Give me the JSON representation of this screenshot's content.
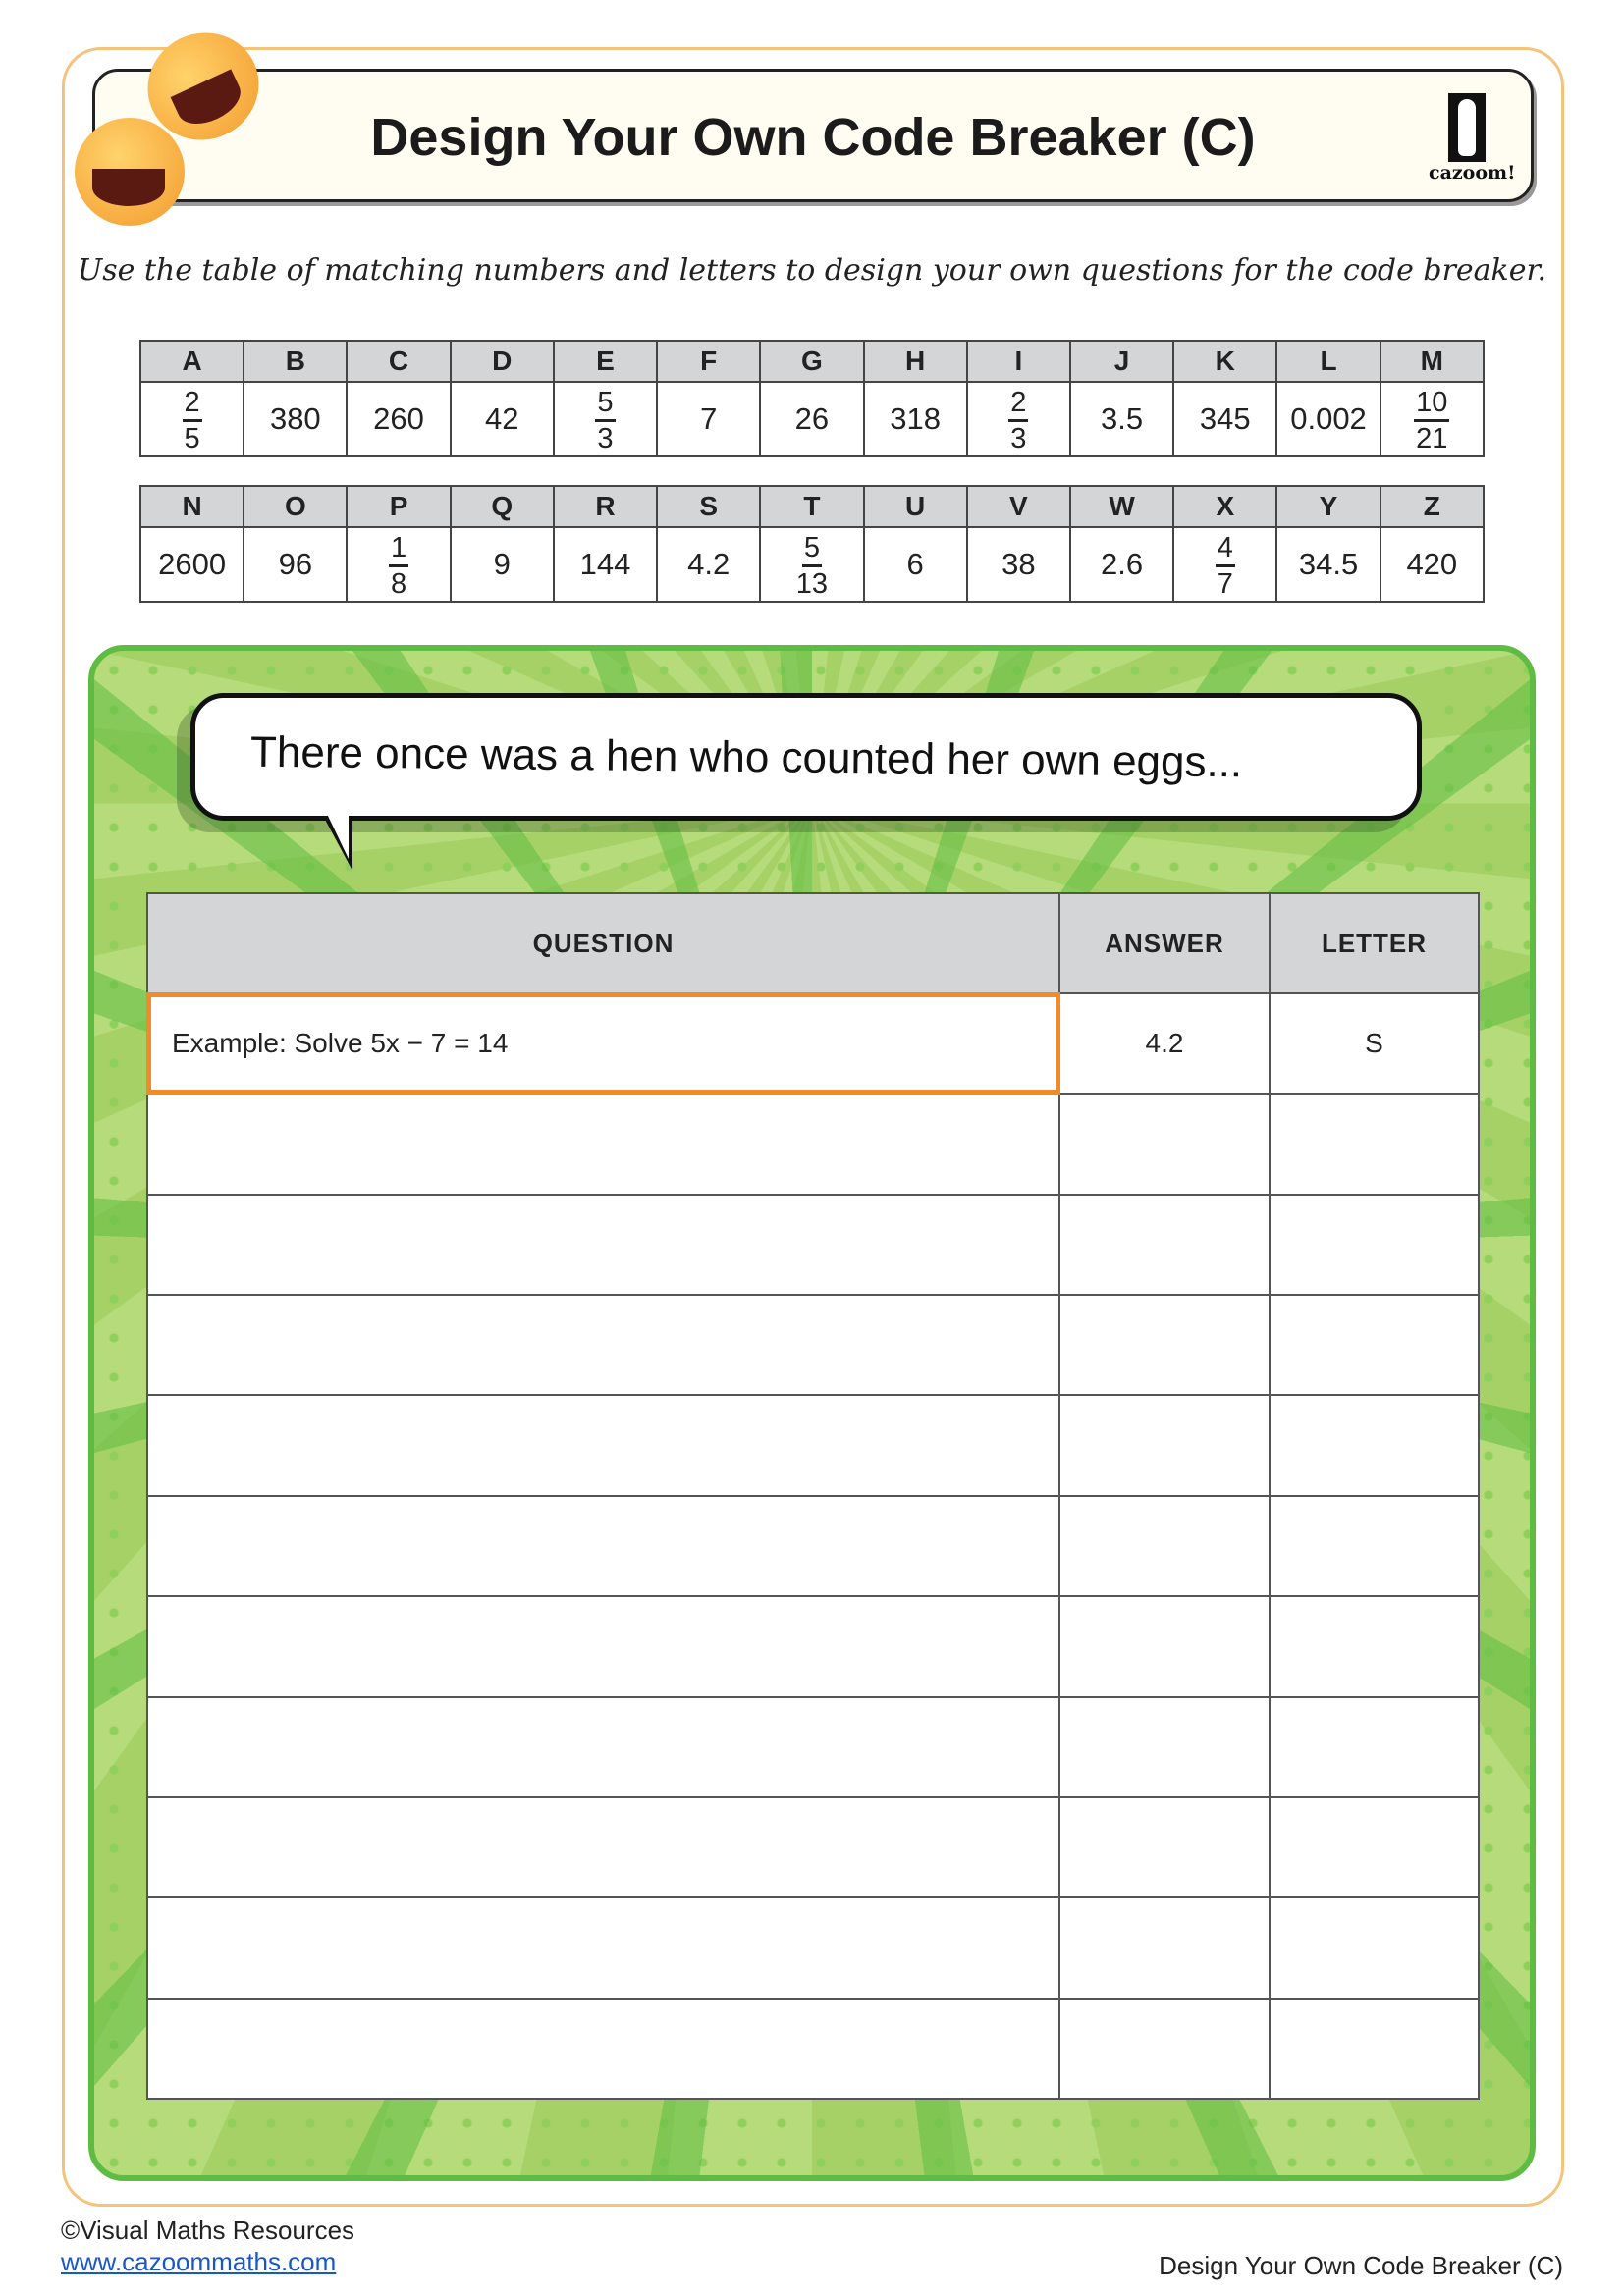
{
  "header": {
    "title": "Design Your Own Code Breaker (C)",
    "logo_text": "cazoom!"
  },
  "instructions": "Use the table of matching numbers and letters to design your own questions for the code breaker.",
  "code_table": [
    [
      {
        "letter": "A",
        "frac": [
          "2",
          "5"
        ]
      },
      {
        "letter": "B",
        "value": "380"
      },
      {
        "letter": "C",
        "value": "260"
      },
      {
        "letter": "D",
        "value": "42"
      },
      {
        "letter": "E",
        "frac": [
          "5",
          "3"
        ]
      },
      {
        "letter": "F",
        "value": "7"
      },
      {
        "letter": "G",
        "value": "26"
      },
      {
        "letter": "H",
        "value": "318"
      },
      {
        "letter": "I",
        "frac": [
          "2",
          "3"
        ]
      },
      {
        "letter": "J",
        "value": "3.5"
      },
      {
        "letter": "K",
        "value": "345"
      },
      {
        "letter": "L",
        "value": "0.002"
      },
      {
        "letter": "M",
        "frac": [
          "10",
          "21"
        ]
      }
    ],
    [
      {
        "letter": "N",
        "value": "2600"
      },
      {
        "letter": "O",
        "value": "96"
      },
      {
        "letter": "P",
        "frac": [
          "1",
          "8"
        ]
      },
      {
        "letter": "Q",
        "value": "9"
      },
      {
        "letter": "R",
        "value": "144"
      },
      {
        "letter": "S",
        "value": "4.2"
      },
      {
        "letter": "T",
        "frac": [
          "5",
          "13"
        ]
      },
      {
        "letter": "U",
        "value": "6"
      },
      {
        "letter": "V",
        "value": "38"
      },
      {
        "letter": "W",
        "value": "2.6"
      },
      {
        "letter": "X",
        "frac": [
          "4",
          "7"
        ]
      },
      {
        "letter": "Y",
        "value": "34.5"
      },
      {
        "letter": "Z",
        "value": "420"
      }
    ]
  ],
  "bubble": "There once was a hen who counted her own eggs...",
  "qa": {
    "headers": [
      "QUESTION",
      "ANSWER",
      "LETTER"
    ],
    "rows": [
      {
        "question": "Example: Solve 5x − 7 = 14",
        "answer": "4.2",
        "letter": "S"
      },
      {
        "question": "",
        "answer": "",
        "letter": ""
      },
      {
        "question": "",
        "answer": "",
        "letter": ""
      },
      {
        "question": "",
        "answer": "",
        "letter": ""
      },
      {
        "question": "",
        "answer": "",
        "letter": ""
      },
      {
        "question": "",
        "answer": "",
        "letter": ""
      },
      {
        "question": "",
        "answer": "",
        "letter": ""
      },
      {
        "question": "",
        "answer": "",
        "letter": ""
      },
      {
        "question": "",
        "answer": "",
        "letter": ""
      },
      {
        "question": "",
        "answer": "",
        "letter": ""
      },
      {
        "question": "",
        "answer": "",
        "letter": ""
      }
    ]
  },
  "footer": {
    "copyright": "©Visual Maths Resources",
    "link": "www.cazoommaths.com",
    "right": "Design Your Own Code Breaker (C)"
  },
  "colors": {
    "frame": "#f5c27a",
    "panel_green": "#5fbc43",
    "highlight": "#f08a2a",
    "header_gray": "#d4d5d7"
  }
}
